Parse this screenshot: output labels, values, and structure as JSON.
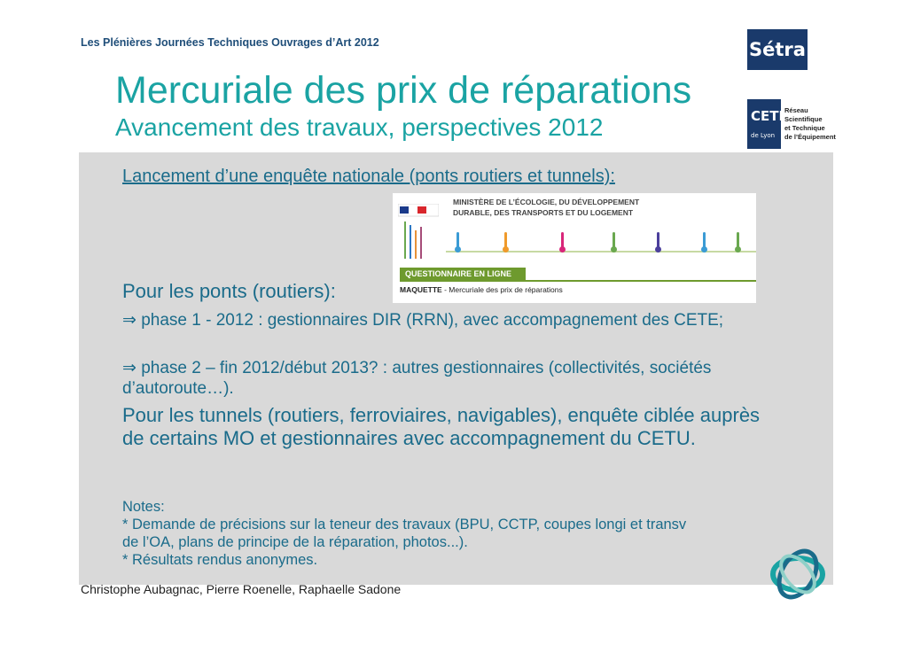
{
  "header": {
    "conference": "Les Plénières Journées Techniques Ouvrages d’Art 2012",
    "setra_logo": "Sétra"
  },
  "title": "Mercuriale des prix de réparations",
  "subtitle": "Avancement des travaux, perspectives 2012",
  "cete_logo": {
    "main": "CETE",
    "city": "de Lyon",
    "network": [
      "Réseau",
      "Scientifique",
      "et Technique",
      "de l’Équipement"
    ]
  },
  "body": {
    "lead": "Lancement d’une enquête nationale (ponts routiers et tunnels):",
    "survey_image": {
      "ministry": "MINISTÈRE DE L’ÉCOLOGIE, DU DÉVELOPPEMENT DURABLE, DES TRANSPORTS ET DU LOGEMENT",
      "banner": "QUESTIONNAIRE EN LIGNE",
      "caption_bold": "MAQUETTE",
      "caption_rest": " - Mercuriale des prix de réparations"
    },
    "ponts_heading": "Pour les ponts (routiers):",
    "phase1": "⇒ phase 1 - 2012 : gestionnaires DIR (RRN), avec accompagnement des CETE;",
    "phase2": "⇒ phase 2 – fin 2012/début 2013? : autres gestionnaires (collectivités, sociétés d’autoroute…).",
    "tunnels": "Pour les tunnels (routiers, ferroviaires, navigables), enquête ciblée auprès de certains MO et gestionnaires avec accompagnement du CETU.",
    "notes": {
      "heading": "Notes:",
      "line1": "* Demande de précisions sur la teneur des travaux (BPU, CCTP, coupes longi et transv",
      "line2": "de l’OA, plans de principe de la réparation, photos...).",
      "line3": "* Résultats rendus anonymes."
    }
  },
  "footer": "Christophe Aubagnac, Pierre Roenelle, Raphaelle Sadone",
  "colors": {
    "title": "#1aa3a3",
    "body_text": "#1a6b8a",
    "panel": "#d9d9d9",
    "logo_blue": "#1a3a6b",
    "survey_green": "#6e9a2e"
  }
}
